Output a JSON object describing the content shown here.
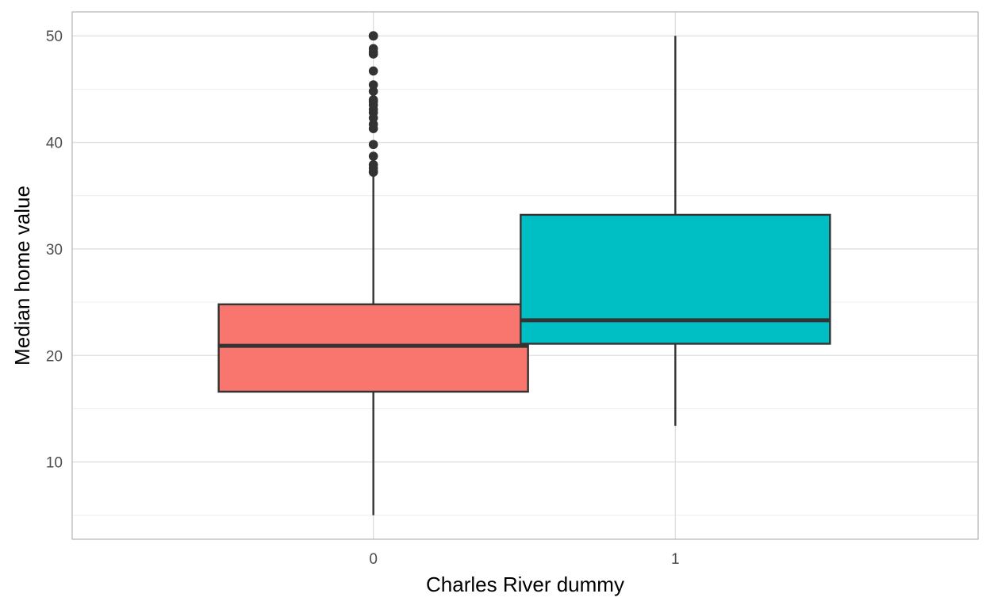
{
  "chart_data": {
    "type": "boxplot",
    "title": "",
    "xlabel": "Charles River dummy",
    "ylabel": "Median home value",
    "ylim": [
      2.75,
      52.25
    ],
    "y_major_ticks": [
      10,
      20,
      30,
      40,
      50
    ],
    "y_minor_ticks": [
      5,
      15,
      25,
      35,
      45
    ],
    "grid": true,
    "legend": "none",
    "categories": [
      "0",
      "1"
    ],
    "boxes": [
      {
        "category": "0",
        "whisker_low": 5.0,
        "q1": 16.6,
        "median": 20.9,
        "q3": 24.8,
        "whisker_high": 37.0,
        "outliers": [
          37.2,
          37.3,
          37.6,
          37.9,
          38.7,
          39.8,
          41.3,
          41.7,
          42.3,
          42.8,
          43.1,
          43.5,
          43.8,
          44.0,
          44.8,
          45.4,
          46.7,
          48.3,
          48.5,
          48.8,
          50.0,
          50.0,
          50.0
        ],
        "fill": "#F8766D"
      },
      {
        "category": "1",
        "whisker_low": 13.4,
        "q1": 21.1,
        "median": 23.3,
        "q3": 33.2,
        "whisker_high": 50.0,
        "outliers": [],
        "fill": "#00BFC4"
      }
    ]
  }
}
